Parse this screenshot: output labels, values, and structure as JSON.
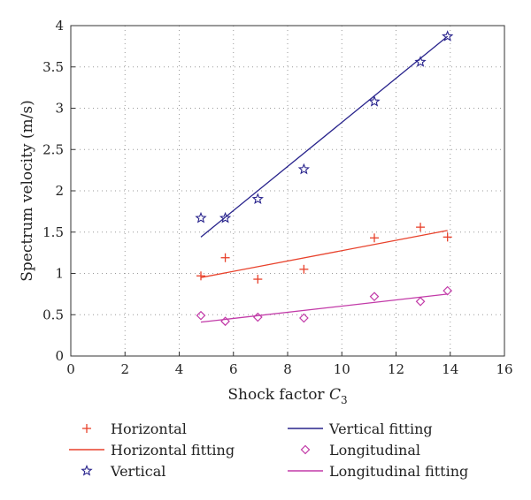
{
  "chart_data": {
    "type": "scatter",
    "title": "",
    "xlabel": "Shock factor",
    "xlabel_symbol": "C",
    "xlabel_subscript": "3",
    "ylabel": "Spectrum velocity (m/s)",
    "xlim": [
      0,
      16
    ],
    "ylim": [
      0,
      4
    ],
    "xticks": [
      "0",
      "2",
      "4",
      "6",
      "8",
      "10",
      "12",
      "14",
      "16"
    ],
    "yticks": [
      "0",
      "0.5",
      "1",
      "1.5",
      "2",
      "2.5",
      "3",
      "3.5",
      "4"
    ],
    "grid": true,
    "grid_style": "dotted",
    "legend_position": "bottom",
    "series": [
      {
        "name": "Horizontal",
        "kind": "points",
        "marker": "plus",
        "color": "#e8412b",
        "x": [
          4.8,
          5.7,
          6.9,
          8.6,
          11.2,
          12.9,
          13.9
        ],
        "y": [
          0.97,
          1.19,
          0.93,
          1.05,
          1.43,
          1.56,
          1.44
        ]
      },
      {
        "name": "Horizontal fitting",
        "kind": "line",
        "color": "#e8412b",
        "x": [
          4.8,
          13.9
        ],
        "y": [
          0.95,
          1.52
        ]
      },
      {
        "name": "Vertical",
        "kind": "points",
        "marker": "star",
        "color": "#28238c",
        "x": [
          4.8,
          5.7,
          6.9,
          8.6,
          11.2,
          12.9,
          13.9
        ],
        "y": [
          1.67,
          1.67,
          1.9,
          2.26,
          3.08,
          3.56,
          3.87
        ]
      },
      {
        "name": "Vertical fitting",
        "kind": "line",
        "color": "#28238c",
        "x": [
          4.8,
          13.9
        ],
        "y": [
          1.44,
          3.87
        ]
      },
      {
        "name": "Longitudinal",
        "kind": "points",
        "marker": "diamond",
        "color": "#c23aa8",
        "x": [
          4.8,
          5.7,
          6.9,
          8.6,
          11.2,
          12.9,
          13.9
        ],
        "y": [
          0.49,
          0.42,
          0.47,
          0.46,
          0.72,
          0.66,
          0.79
        ]
      },
      {
        "name": "Longitudinal fitting",
        "kind": "line",
        "color": "#c23aa8",
        "x": [
          4.8,
          13.9
        ],
        "y": [
          0.41,
          0.75
        ]
      }
    ],
    "legend_order": [
      "Horizontal",
      "Vertical fitting",
      "Horizontal fitting",
      "Longitudinal",
      "Vertical",
      "Longitudinal fitting"
    ]
  }
}
